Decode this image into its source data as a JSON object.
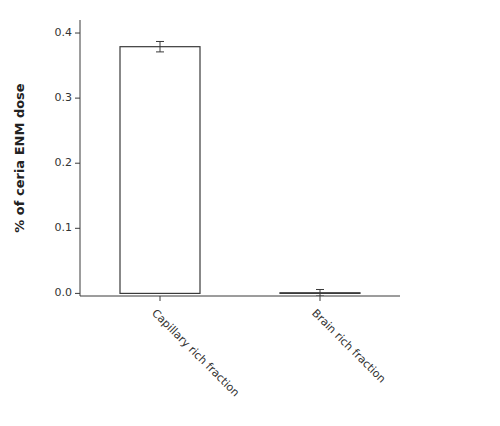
{
  "chart_data": {
    "type": "bar",
    "categories": [
      "Capillary rich fraction",
      "Brain rich fraction"
    ],
    "values": [
      0.379,
      0.001
    ],
    "errors": [
      0.008,
      0.005
    ],
    "color": "#ffffff",
    "ylabel": "% of ceria ENM dose",
    "ylim": [
      -0.004,
      0.42
    ],
    "yticks": [
      {
        "value": 0.0,
        "label": "0.0"
      },
      0.1,
      0.2,
      0.3,
      0.4
    ],
    "grid": false
  }
}
